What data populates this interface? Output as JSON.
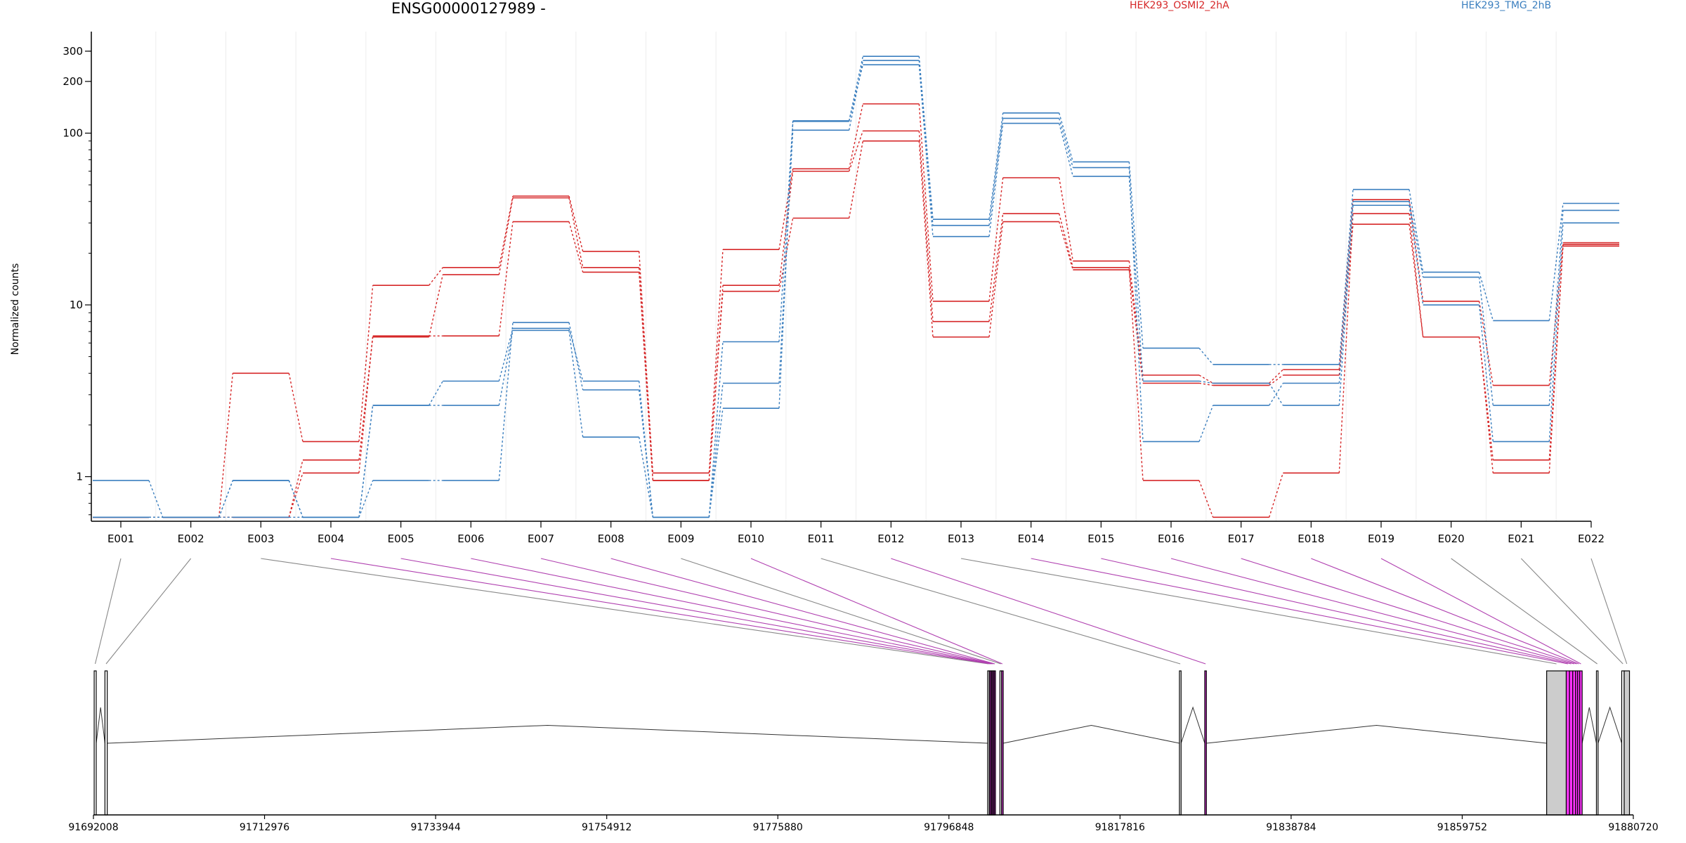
{
  "chart_data": [
    {
      "type": "line",
      "title": "ENSG00000127989 -",
      "ylabel": "Normalized counts",
      "yscale": "log",
      "ylim": [
        0.55,
        390
      ],
      "yticks": [
        1,
        10,
        100,
        200,
        300
      ],
      "ytick_labels": [
        "1",
        "10",
        "100",
        "200",
        "300"
      ],
      "grid": "vertical",
      "legend_position": "top",
      "categories": [
        "E001",
        "E002",
        "E003",
        "E004",
        "E005",
        "E006",
        "E007",
        "E008",
        "E009",
        "E010",
        "E011",
        "E012",
        "E013",
        "E014",
        "E015",
        "E016",
        "E017",
        "E018",
        "E019",
        "E020",
        "E021",
        "E022"
      ],
      "groups": [
        {
          "label": "HEK293_OSMI2_2hA",
          "color": "#d62728"
        },
        {
          "label": "HEK293_TMG_2hB",
          "color": "#3b7fbf"
        }
      ],
      "series": [
        {
          "group": 0,
          "values": [
            0.58,
            0.58,
            4.0,
            1.6,
            13,
            16.5,
            43,
            20.5,
            1.05,
            21,
            62,
            148,
            10.5,
            55,
            18,
            3.9,
            3.5,
            4.2,
            41,
            10.5,
            3.4,
            23
          ]
        },
        {
          "group": 0,
          "values": [
            0.58,
            0.58,
            0.58,
            1.25,
            6.5,
            15,
            42,
            16.5,
            0.95,
            13,
            60,
            103,
            8.0,
            34,
            16.5,
            0.95,
            0.58,
            1.05,
            34,
            6.5,
            1.25,
            22
          ]
        },
        {
          "group": 0,
          "values": [
            0.58,
            0.58,
            0.58,
            1.05,
            6.6,
            6.6,
            30.5,
            15.5,
            0.95,
            12,
            32,
            90,
            6.5,
            30.5,
            16,
            3.5,
            3.4,
            3.9,
            29.5,
            6.5,
            1.05,
            22.5
          ]
        },
        {
          "group": 1,
          "values": [
            0.95,
            0.58,
            0.95,
            0.58,
            0.95,
            0.95,
            7.9,
            3.2,
            0.58,
            6.1,
            118,
            280,
            31.5,
            131,
            68,
            5.6,
            4.5,
            4.5,
            47,
            15.5,
            8.1,
            39
          ]
        },
        {
          "group": 1,
          "values": [
            0.58,
            0.58,
            0.95,
            0.58,
            2.6,
            3.6,
            7.3,
            3.6,
            0.58,
            3.5,
            104,
            265,
            29,
            122,
            63,
            1.6,
            2.6,
            3.5,
            40,
            14.5,
            2.6,
            35.5
          ]
        },
        {
          "group": 1,
          "values": [
            0.58,
            0.58,
            0.58,
            0.58,
            2.6,
            2.6,
            7.1,
            1.7,
            0.58,
            2.5,
            117,
            250,
            25,
            114,
            56,
            3.6,
            3.5,
            2.6,
            38,
            10,
            1.6,
            30
          ]
        }
      ]
    },
    {
      "type": "gene-model",
      "xticks": [
        91692008,
        91712976,
        91733944,
        91754912,
        91775880,
        91796848,
        91817816,
        91838784,
        91859752,
        91880720
      ],
      "xtick_labels": [
        "91692008",
        "91712976",
        "91733944",
        "91754912",
        "91775880",
        "91796848",
        "91817816",
        "91838784",
        "91859752",
        "91880720"
      ],
      "xlim": [
        91692008,
        91880720
      ],
      "exons": [
        {
          "id": "E001",
          "start": 91692100,
          "end": 91692350,
          "fill": "#ffffff",
          "highlight": false
        },
        {
          "id": "E002",
          "start": 91693420,
          "end": 91693700,
          "fill": "#ffffff",
          "highlight": false
        },
        {
          "id": "E003",
          "start": 91801600,
          "end": 91801800,
          "fill": "#ffffff",
          "highlight": false
        },
        {
          "id": "E004",
          "start": 91801800,
          "end": 91801950,
          "fill": "#cc33cc",
          "highlight": true
        },
        {
          "id": "E005",
          "start": 91801950,
          "end": 91802100,
          "fill": "#cc33cc",
          "highlight": true
        },
        {
          "id": "E006",
          "start": 91802100,
          "end": 91802250,
          "fill": "#cc33cc",
          "highlight": true
        },
        {
          "id": "E007",
          "start": 91802250,
          "end": 91802400,
          "fill": "#cc33cc",
          "highlight": true
        },
        {
          "id": "E008",
          "start": 91802400,
          "end": 91802550,
          "fill": "#cc33cc",
          "highlight": true
        },
        {
          "id": "E009",
          "start": 91803100,
          "end": 91803300,
          "fill": "#ffffff",
          "highlight": false
        },
        {
          "id": "E010",
          "start": 91803300,
          "end": 91803500,
          "fill": "#cc33cc",
          "highlight": true
        },
        {
          "id": "E011",
          "start": 91825100,
          "end": 91825300,
          "fill": "#ffffff",
          "highlight": false
        },
        {
          "id": "E012",
          "start": 91828200,
          "end": 91828400,
          "fill": "#cc33cc",
          "highlight": true
        },
        {
          "id": "E013",
          "start": 91870100,
          "end": 91872500,
          "fill": "#cccccc",
          "highlight": false
        },
        {
          "id": "E014",
          "start": 91872500,
          "end": 91872900,
          "fill": "#ff33ff",
          "highlight": true
        },
        {
          "id": "E015",
          "start": 91872900,
          "end": 91873300,
          "fill": "#ff33ff",
          "highlight": true
        },
        {
          "id": "E016",
          "start": 91873300,
          "end": 91873650,
          "fill": "#ff33ff",
          "highlight": true
        },
        {
          "id": "E017",
          "start": 91873650,
          "end": 91873900,
          "fill": "#ff33ff",
          "highlight": true
        },
        {
          "id": "E018",
          "start": 91873900,
          "end": 91874150,
          "fill": "#ff33ff",
          "highlight": true
        },
        {
          "id": "E019",
          "start": 91874150,
          "end": 91874450,
          "fill": "#ff33ff",
          "highlight": true
        },
        {
          "id": "E020",
          "start": 91876200,
          "end": 91876400,
          "fill": "#ffffff",
          "highlight": false
        },
        {
          "id": "E021",
          "start": 91879300,
          "end": 91879600,
          "fill": "#ffffff",
          "highlight": false
        },
        {
          "id": "E022",
          "start": 91879600,
          "end": 91880250,
          "fill": "#cccccc",
          "highlight": false
        }
      ],
      "introns": [
        [
          91692350,
          91693420,
          1.7
        ],
        [
          91693700,
          91801600,
          0.85
        ],
        [
          91803500,
          91825100,
          0.85
        ],
        [
          91825300,
          91828200,
          1.7
        ],
        [
          91828400,
          91870100,
          0.85
        ],
        [
          91874450,
          91876200,
          1.7
        ],
        [
          91876400,
          91879300,
          1.7
        ]
      ]
    }
  ]
}
